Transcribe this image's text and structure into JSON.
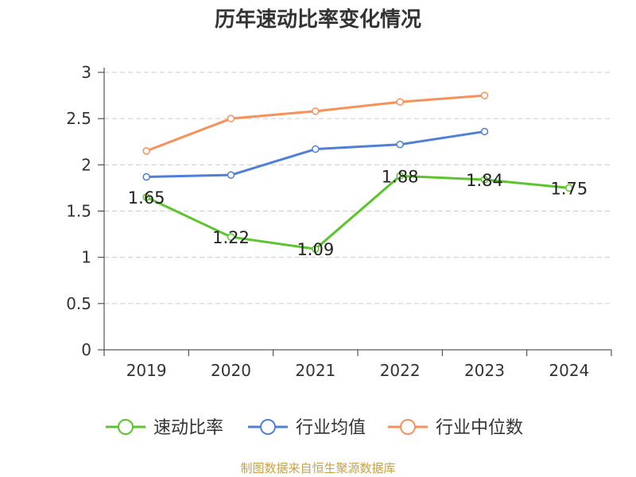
{
  "chart_data": {
    "type": "line",
    "title": "历年速动比率变化情况",
    "categories": [
      "2019",
      "2020",
      "2021",
      "2022",
      "2023",
      "2024"
    ],
    "y_ticks": [
      "0",
      "0.5",
      "1",
      "1.5",
      "2",
      "2.5",
      "3"
    ],
    "ylim": [
      0,
      3
    ],
    "grid": true,
    "legend_position": "bottom",
    "series": [
      {
        "name": "速动比率",
        "color": "#5cc42d",
        "values": [
          1.65,
          1.22,
          1.09,
          1.88,
          1.84,
          1.75
        ],
        "labels": [
          "1.65",
          "1.22",
          "1.09",
          "1.88",
          "1.84",
          "1.75"
        ]
      },
      {
        "name": "行业均值",
        "color": "#4f7fd8",
        "values": [
          1.87,
          1.89,
          2.17,
          2.22,
          2.36,
          null
        ]
      },
      {
        "name": "行业中位数",
        "color": "#f7915a",
        "values": [
          2.15,
          2.5,
          2.58,
          2.68,
          2.75,
          null
        ]
      }
    ]
  },
  "source_note": "制图数据来自恒生聚源数据库"
}
